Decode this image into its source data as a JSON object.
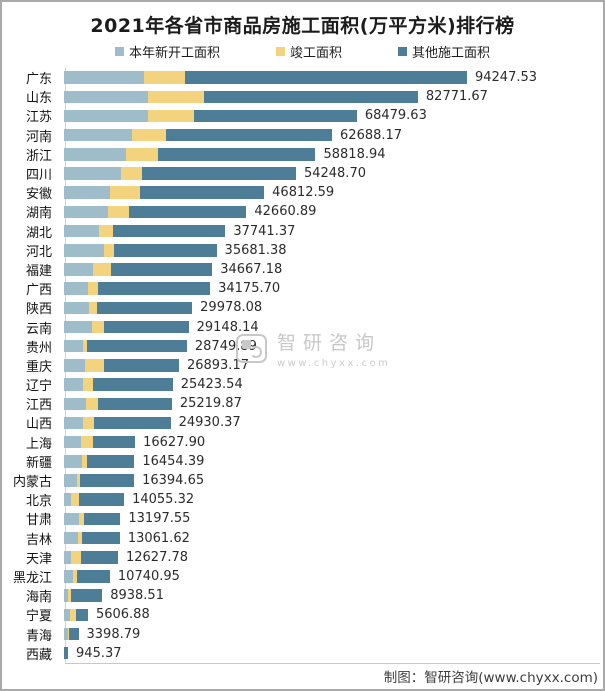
{
  "title": "2021年各省市商品房施工面积(万平方米)排行榜",
  "legend": [
    {
      "label": "本年新开工面积",
      "color": "#9FBCCB"
    },
    {
      "label": "竣工面积",
      "color": "#F4D37E"
    },
    {
      "label": "其他施工面积",
      "color": "#4E7E97"
    }
  ],
  "watermark": {
    "brand": "智研咨询",
    "url": "www.chyxx.com"
  },
  "footer": {
    "credit": "制图：智研咨询(www.chyxx.com)"
  },
  "chart_data": {
    "type": "bar",
    "orientation": "horizontal",
    "stacked": true,
    "unit": "万平方米",
    "value_axis_visible": false,
    "grid": false,
    "legend_position": "top",
    "series_names": [
      "本年新开工面积",
      "竣工面积",
      "其他施工面积"
    ],
    "note": "Totals are the printed data labels; per-segment values are estimated from bar segment proportions.",
    "categories": [
      "广东",
      "山东",
      "江苏",
      "河南",
      "浙江",
      "四川",
      "安徽",
      "湖南",
      "湖北",
      "河北",
      "福建",
      "广西",
      "陕西",
      "云南",
      "贵州",
      "重庆",
      "辽宁",
      "江西",
      "山西",
      "上海",
      "新疆",
      "内蒙古",
      "北京",
      "甘肃",
      "吉林",
      "天津",
      "黑龙江",
      "海南",
      "宁夏",
      "青海",
      "西藏"
    ],
    "rows": [
      {
        "province": "广东",
        "total": 94247.53,
        "segments": [
          18700,
          9600,
          65947.53
        ]
      },
      {
        "province": "山东",
        "total": 82771.67,
        "segments": [
          19600,
          13250,
          49921.67
        ]
      },
      {
        "province": "江苏",
        "total": 68479.63,
        "segments": [
          19700,
          10750,
          38029.63
        ]
      },
      {
        "province": "河南",
        "total": 62688.17,
        "segments": [
          16000,
          7900,
          38788.17
        ]
      },
      {
        "province": "浙江",
        "total": 58818.94,
        "segments": [
          14450,
          7500,
          36868.94
        ]
      },
      {
        "province": "四川",
        "total": 54248.7,
        "segments": [
          13350,
          5000,
          35898.7
        ]
      },
      {
        "province": "安徽",
        "total": 46812.59,
        "segments": [
          10750,
          7000,
          29062.59
        ]
      },
      {
        "province": "湖南",
        "total": 42660.89,
        "segments": [
          10400,
          4900,
          27360.89
        ]
      },
      {
        "province": "湖北",
        "total": 37741.37,
        "segments": [
          8200,
          3350,
          26191.37
        ]
      },
      {
        "province": "河北",
        "total": 35681.38,
        "segments": [
          9350,
          2350,
          23981.38
        ]
      },
      {
        "province": "福建",
        "total": 34667.18,
        "segments": [
          6700,
          4200,
          23767.18
        ]
      },
      {
        "province": "广西",
        "total": 34175.7,
        "segments": [
          5550,
          2350,
          26275.7
        ]
      },
      {
        "province": "陕西",
        "total": 29978.08,
        "segments": [
          5850,
          1950,
          22178.08
        ]
      },
      {
        "province": "云南",
        "total": 29148.14,
        "segments": [
          6500,
          2750,
          19898.14
        ]
      },
      {
        "province": "贵州",
        "total": 28749.89,
        "segments": [
          4400,
          950,
          23399.89
        ]
      },
      {
        "province": "重庆",
        "total": 26893.17,
        "segments": [
          4900,
          4450,
          17543.17
        ]
      },
      {
        "province": "辽宁",
        "total": 25423.54,
        "segments": [
          4400,
          2350,
          18673.54
        ]
      },
      {
        "province": "江西",
        "total": 25219.87,
        "segments": [
          5100,
          2750,
          17369.87
        ]
      },
      {
        "province": "山西",
        "total": 24930.37,
        "segments": [
          4550,
          2500,
          17880.37
        ]
      },
      {
        "province": "上海",
        "total": 16627.9,
        "segments": [
          3900,
          2800,
          9927.9
        ]
      },
      {
        "province": "新疆",
        "total": 16454.39,
        "segments": [
          4150,
          1150,
          11154.39
        ]
      },
      {
        "province": "内蒙古",
        "total": 16394.65,
        "segments": [
          2950,
          800,
          12644.65
        ]
      },
      {
        "province": "北京",
        "total": 14055.32,
        "segments": [
          1550,
          2050,
          10455.32
        ]
      },
      {
        "province": "甘肃",
        "total": 13197.55,
        "segments": [
          3600,
          1100,
          8497.55
        ]
      },
      {
        "province": "吉林",
        "total": 13061.62,
        "segments": [
          3350,
          800,
          8911.62
        ]
      },
      {
        "province": "天津",
        "total": 12627.78,
        "segments": [
          1550,
          2350,
          8727.78
        ]
      },
      {
        "province": "黑龙江",
        "total": 10740.95,
        "segments": [
          2200,
          950,
          7590.95
        ]
      },
      {
        "province": "海南",
        "total": 8938.51,
        "segments": [
          1050,
          550,
          7338.51
        ]
      },
      {
        "province": "宁夏",
        "total": 5606.88,
        "segments": [
          1400,
          1350,
          2856.88
        ]
      },
      {
        "province": "青海",
        "total": 3398.79,
        "segments": [
          850,
          250,
          2298.79
        ]
      },
      {
        "province": "西藏",
        "total": 945.37,
        "segments": [
          0,
          0,
          945.37
        ]
      }
    ]
  }
}
